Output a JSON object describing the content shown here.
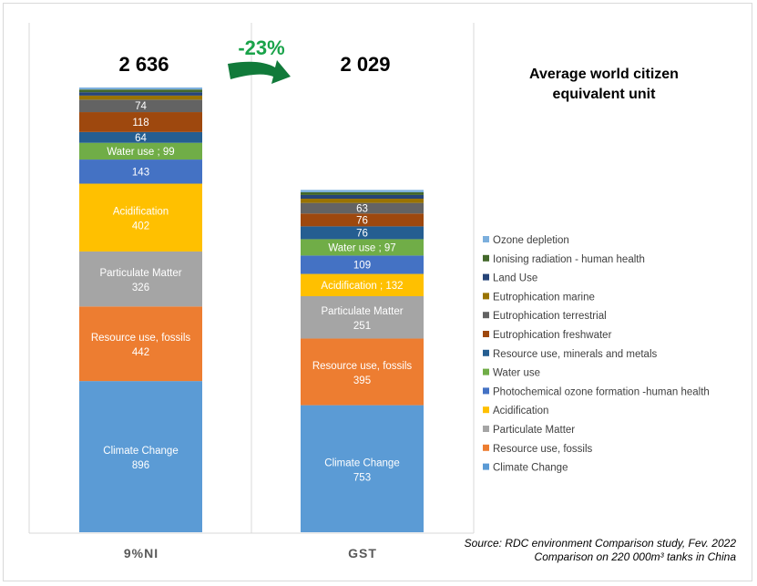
{
  "chart_data": {
    "type": "bar",
    "stacked": true,
    "title": "Average world citizen equivalent unit",
    "title_lines": [
      "Average world citizen",
      "equivalent unit"
    ],
    "categories": [
      "9%NI",
      "GST"
    ],
    "totals": [
      "2 636",
      "2 029"
    ],
    "total_values": [
      2636,
      2029
    ],
    "change_label": "-23%",
    "legend_position": "right",
    "series": [
      {
        "name": "Climate Change",
        "color": "#5b9bd5",
        "values": [
          896,
          753
        ],
        "label_modes": [
          "stack",
          "stack"
        ]
      },
      {
        "name": "Resource use, fossils",
        "color": "#ed7d31",
        "values": [
          442,
          395
        ],
        "label_modes": [
          "stack",
          "stack"
        ]
      },
      {
        "name": "Particulate Matter",
        "color": "#a5a5a5",
        "values": [
          326,
          251
        ],
        "label_modes": [
          "stack",
          "stack"
        ]
      },
      {
        "name": "Acidification",
        "color": "#ffc000",
        "values": [
          402,
          132
        ],
        "label_modes": [
          "stack",
          "inline"
        ]
      },
      {
        "name": "Photochemical ozone formation -human health",
        "color": "#4472c4",
        "values": [
          143,
          109
        ],
        "label_modes": [
          "value",
          "value"
        ]
      },
      {
        "name": "Water use",
        "color": "#70ad47",
        "values": [
          99,
          97
        ],
        "label_modes": [
          "inline",
          "inline"
        ]
      },
      {
        "name": "Resource use, minerals and metals",
        "color": "#255e91",
        "values": [
          64,
          76
        ],
        "label_modes": [
          "value",
          "value"
        ]
      },
      {
        "name": "Eutrophication freshwater",
        "color": "#9e480e",
        "values": [
          118,
          76
        ],
        "label_modes": [
          "value",
          "value"
        ]
      },
      {
        "name": "Eutrophication terrestrial",
        "color": "#636363",
        "values": [
          74,
          63
        ],
        "label_modes": [
          "value",
          "value"
        ]
      },
      {
        "name": "Eutrophication marine",
        "color": "#997300",
        "values": [
          24,
          25
        ],
        "label_modes": [
          "none",
          "none"
        ]
      },
      {
        "name": "Land Use",
        "color": "#264478",
        "values": [
          20,
          22
        ],
        "label_modes": [
          "none",
          "none"
        ]
      },
      {
        "name": "Ionising radiation - human health",
        "color": "#43682b",
        "values": [
          16,
          16
        ],
        "label_modes": [
          "none",
          "none"
        ]
      },
      {
        "name": "Ozone depletion",
        "color": "#7cafdd",
        "values": [
          12,
          14
        ],
        "label_modes": [
          "none",
          "none"
        ]
      }
    ],
    "ylim": [
      0,
      2636
    ]
  },
  "source": {
    "line1": "Source: RDC environment Comparison study, Fev. 2022",
    "line2": "Comparison on 220 000m³ tanks in China"
  },
  "colors": {
    "arrow": "#117a3a",
    "change_text": "#1aa34a"
  }
}
